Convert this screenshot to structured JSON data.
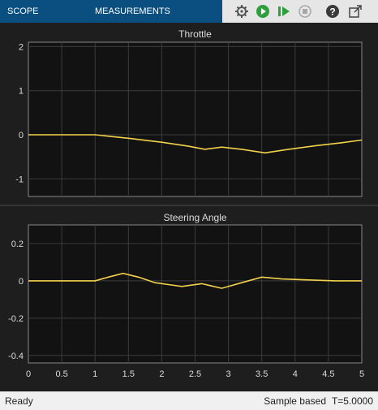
{
  "toolbar": {
    "tabs": [
      "SCOPE",
      "MEASUREMENTS"
    ],
    "buttons": [
      "settings-icon",
      "run-icon",
      "step-forward-icon",
      "stop-icon",
      "help-icon",
      "undock-icon"
    ]
  },
  "colors": {
    "signal": "#f2d24b",
    "axes_bg": "#121212",
    "grid": "#3c3c3c",
    "text": "#dcdcdc",
    "toolbar": "#0a4f7f"
  },
  "chart_data": [
    {
      "type": "line",
      "title": "Throttle",
      "xlabel": "",
      "ylabel": "",
      "xlim": [
        0,
        5
      ],
      "ylim": [
        -1.4,
        2.1
      ],
      "yticks": [
        2,
        1,
        0,
        -1
      ],
      "grid": true,
      "series": [
        {
          "x": [
            0,
            0.5,
            1.0,
            1.5,
            2.0,
            2.4,
            2.65,
            2.9,
            3.2,
            3.55,
            3.9,
            4.3,
            4.7,
            5.0
          ],
          "y": [
            0,
            0,
            0,
            -0.08,
            -0.17,
            -0.26,
            -0.33,
            -0.28,
            -0.33,
            -0.41,
            -0.33,
            -0.25,
            -0.18,
            -0.12
          ]
        }
      ]
    },
    {
      "type": "line",
      "title": "Steering Angle",
      "xlabel": "",
      "ylabel": "",
      "xlim": [
        0,
        5
      ],
      "ylim": [
        -0.44,
        0.3
      ],
      "xticks": [
        0,
        0.5,
        1,
        1.5,
        2,
        2.5,
        3,
        3.5,
        4,
        4.5,
        5
      ],
      "yticks": [
        0.2,
        0,
        -0.2,
        -0.4
      ],
      "grid": true,
      "series": [
        {
          "x": [
            0,
            0.5,
            1.0,
            1.2,
            1.42,
            1.65,
            1.9,
            2.1,
            2.3,
            2.6,
            2.9,
            3.2,
            3.5,
            3.8,
            4.2,
            4.6,
            5.0
          ],
          "y": [
            0,
            0,
            0,
            0.02,
            0.04,
            0.02,
            -0.01,
            -0.02,
            -0.03,
            -0.015,
            -0.04,
            -0.01,
            0.02,
            0.01,
            0.005,
            0.0,
            0.0
          ]
        }
      ]
    }
  ],
  "status": {
    "left": "Ready",
    "mode": "Sample based",
    "time": "T=5.0000"
  }
}
